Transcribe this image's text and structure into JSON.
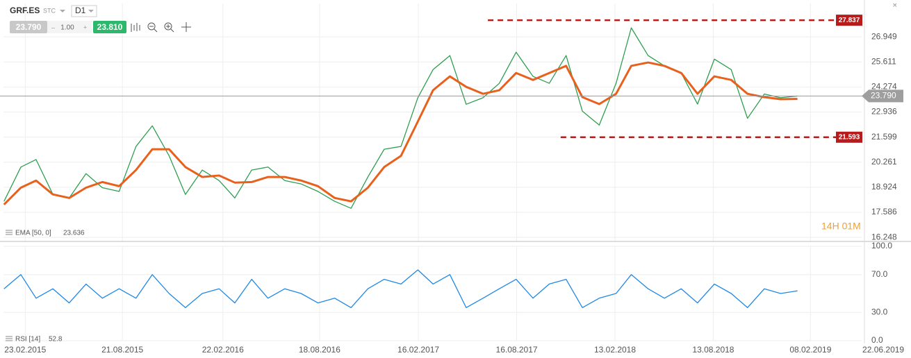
{
  "header": {
    "stc": "STC",
    "interval": "D1",
    "bid": "23.790",
    "volume": "1.00",
    "ask": "23.810",
    "countdown": "14H 01M"
  },
  "chart_data": [
    {
      "type": "line",
      "x": [
        "2015-01-15",
        "2015-02-15",
        "2015-03-15",
        "2015-04-15",
        "2015-05-15",
        "2015-06-15",
        "2015-07-15",
        "2015-08-15",
        "2015-09-15",
        "2015-10-15",
        "2015-11-15",
        "2015-12-15",
        "2016-01-15",
        "2016-02-15",
        "2016-03-15",
        "2016-04-15",
        "2016-05-15",
        "2016-06-15",
        "2016-07-15",
        "2016-08-15",
        "2016-09-15",
        "2016-10-15",
        "2016-11-15",
        "2016-12-15",
        "2017-01-15",
        "2017-02-15",
        "2017-03-15",
        "2017-04-15",
        "2017-05-15",
        "2017-06-15",
        "2017-07-15",
        "2017-08-15",
        "2017-09-15",
        "2017-10-15",
        "2017-11-15",
        "2017-12-15",
        "2018-01-15",
        "2018-02-15",
        "2018-03-15",
        "2018-04-15",
        "2018-05-15",
        "2018-06-15",
        "2018-07-15",
        "2018-08-15",
        "2018-09-15",
        "2018-10-15",
        "2018-11-15",
        "2018-12-15",
        "2019-01-15"
      ],
      "series": [
        {
          "name": "GRF.ES",
          "color": "#2e9e4f",
          "values": [
            18.17,
            20.0,
            20.4,
            18.54,
            18.35,
            19.65,
            18.9,
            18.7,
            21.1,
            22.2,
            20.6,
            18.54,
            19.84,
            19.28,
            18.35,
            19.84,
            20.0,
            19.28,
            19.1,
            18.7,
            18.17,
            17.8,
            19.47,
            20.95,
            21.1,
            23.7,
            25.2,
            25.95,
            23.35,
            23.7,
            24.47,
            26.13,
            24.84,
            24.47,
            25.95,
            22.98,
            22.24,
            24.47,
            27.43,
            25.95,
            25.4,
            25.02,
            23.36,
            25.76,
            25.2,
            22.6,
            23.9,
            23.7,
            23.79
          ]
        },
        {
          "name": "EMA [50, 0]",
          "color": "#e8601c",
          "values": [
            18.0,
            18.9,
            19.28,
            18.54,
            18.35,
            18.9,
            19.2,
            18.98,
            19.84,
            20.95,
            20.95,
            20.0,
            19.47,
            19.55,
            19.17,
            19.2,
            19.47,
            19.47,
            19.28,
            18.98,
            18.35,
            18.17,
            18.9,
            20.0,
            20.6,
            22.43,
            24.1,
            24.84,
            24.28,
            23.91,
            24.1,
            25.02,
            24.65,
            25.02,
            25.4,
            23.73,
            23.36,
            23.91,
            25.4,
            25.58,
            25.4,
            25.02,
            23.91,
            24.84,
            24.65,
            23.91,
            23.73,
            23.62,
            23.636
          ]
        }
      ],
      "current": {
        "value": 23.79,
        "label": "23.790"
      },
      "levels": [
        {
          "value": 27.837,
          "from": "2017-06-24",
          "color": "#b71c1c"
        },
        {
          "value": 21.593,
          "from": "2017-11-05",
          "color": "#b71c1c"
        }
      ],
      "xlim": [
        "2015-01-14",
        "2019-07-29"
      ],
      "xticks": [
        {
          "value": "2015-02-23",
          "label": "23.02.2015"
        },
        {
          "value": "2015-08-21",
          "label": "21.08.2015"
        },
        {
          "value": "2016-02-22",
          "label": "22.02.2016"
        },
        {
          "value": "2016-08-18",
          "label": "18.08.2016"
        },
        {
          "value": "2017-02-16",
          "label": "16.02.2017"
        },
        {
          "value": "2017-08-16",
          "label": "16.08.2017"
        },
        {
          "value": "2018-02-13",
          "label": "13.02.2018"
        },
        {
          "value": "2018-08-13",
          "label": "13.08.2018"
        },
        {
          "value": "2019-02-08",
          "label": "08.02.2019"
        },
        {
          "value": "2019-06-22",
          "label": "22.06.2019"
        }
      ],
      "ylim": [
        16.03,
        28.73
      ],
      "yticks": [
        26.949,
        25.611,
        24.274,
        22.936,
        21.599,
        20.261,
        18.924,
        17.586,
        16.248
      ],
      "grid": true
    },
    {
      "type": "line",
      "series": [
        {
          "name": "RSI [14]",
          "color": "#1e88e5",
          "values": [
            55,
            70,
            45,
            55,
            40,
            60,
            45,
            55,
            45,
            70,
            50,
            35,
            50,
            55,
            40,
            65,
            45,
            55,
            50,
            40,
            45,
            35,
            55,
            65,
            60,
            75,
            60,
            70,
            35,
            45,
            55,
            65,
            45,
            60,
            65,
            35,
            45,
            50,
            70,
            55,
            45,
            55,
            40,
            60,
            50,
            35,
            55,
            50,
            52.8
          ]
        }
      ],
      "ylim": [
        0,
        100
      ],
      "yticks": [
        {
          "value": 100,
          "label": "100.0"
        },
        {
          "value": 70,
          "label": "70.0"
        },
        {
          "value": 30,
          "label": "30.0"
        },
        {
          "value": 0,
          "label": "0.0"
        }
      ],
      "grid": true
    }
  ]
}
